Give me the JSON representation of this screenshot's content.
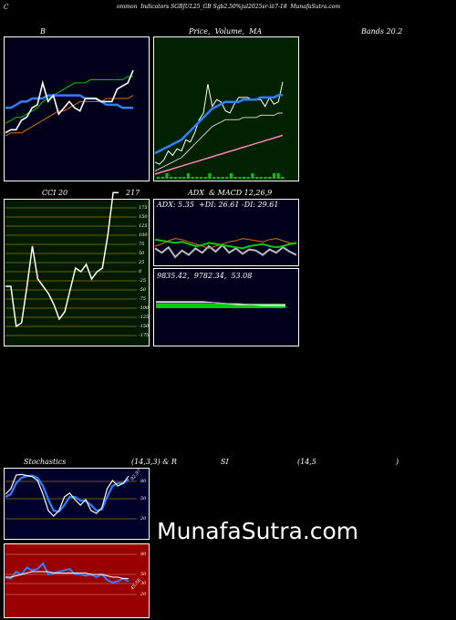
{
  "header": {
    "c_letter": "C",
    "line": "ommon  Indicators SGBJUL25_GB Sgb2.50%jul2025sr-iii7-18  MunafaSutra.com"
  },
  "labels": {
    "b": "B",
    "price_volume_ma": "Price,  Volume,  MA",
    "bands": "Bands 20.2",
    "cci": "CCI 20",
    "cci_value": "217",
    "adx_macd": "ADX  & MACD 12,26,9",
    "adx_line": "ADX: 5.35  +DI: 26.61 -DI: 29.61",
    "macd_line": "9835.42,  9782.34,  53.08",
    "stoch": "Stochastics",
    "stoch_params": "(14,3,3) & R",
    "si": "SI",
    "rsi_params": "(14,5",
    "paren": ")",
    "stoch_value": "92.97",
    "rsi_value": "45.56"
  },
  "watermark": "MunafaSutra.com",
  "cci_ticks": [
    "175",
    "150",
    "125",
    "100",
    "75",
    "50",
    "25",
    "0",
    "-25",
    "-50",
    "-75",
    "-100",
    "-125",
    "-150",
    "-175"
  ],
  "stoch_ticks": [
    "80",
    "50",
    "20"
  ],
  "rsi_ticks": [
    "80",
    "50",
    "30",
    "20"
  ],
  "colors": {
    "bollinger_bg": "#00001a",
    "price_bg": "#002200",
    "cci_bg": "#001a00",
    "adx_bg": "#00001a",
    "stoch_bg": "#00002a",
    "rsi_bg": "#990000",
    "blue": "#2f80ff",
    "orange": "#e07000",
    "green": "#00cc00",
    "pink": "#ff80c0"
  },
  "chart_data": [
    {
      "type": "line",
      "panel": "bollinger",
      "series": [
        {
          "values": [
            2,
            3,
            3,
            6,
            7,
            10,
            11,
            18,
            12,
            14,
            8,
            10,
            12,
            10,
            9,
            13,
            13,
            13,
            12,
            12,
            12,
            16,
            17,
            18,
            22
          ]
        },
        {
          "values": [
            13,
            14,
            15,
            15,
            16,
            17,
            18,
            20,
            21,
            22,
            23,
            24,
            25,
            26,
            26,
            26,
            27,
            27,
            27,
            27,
            27,
            27,
            27,
            28,
            28
          ]
        },
        {
          "values": [
            9,
            10,
            10,
            10,
            11,
            12,
            13,
            14,
            15,
            16,
            17,
            17,
            18,
            19,
            20,
            20,
            20,
            20,
            20,
            21,
            21,
            21,
            21,
            21,
            22
          ]
        },
        {
          "values": [
            30,
            30,
            31,
            32,
            32,
            33,
            33,
            33,
            34,
            34,
            34,
            34,
            34,
            34,
            34,
            33,
            33,
            33,
            32,
            31,
            31,
            31,
            30,
            30,
            30
          ]
        }
      ]
    },
    {
      "type": "line",
      "panel": "price",
      "series": [
        {
          "values": [
            5,
            4,
            6,
            10,
            8,
            11,
            10,
            15,
            14,
            18,
            24,
            27,
            40,
            30,
            33,
            32,
            28,
            27,
            31,
            34,
            34,
            34,
            33,
            33,
            33,
            30,
            34,
            31,
            32,
            41
          ]
        },
        {
          "values": [
            5,
            6,
            7,
            8,
            9,
            10,
            11,
            13,
            15,
            17,
            19,
            21,
            23,
            25,
            26,
            27,
            28,
            28,
            28,
            28,
            29,
            29,
            29,
            29,
            30,
            30,
            30,
            30,
            31,
            31
          ]
        },
        {
          "values": [
            1,
            2,
            3,
            4,
            5,
            6,
            7,
            8,
            9,
            10,
            11,
            12,
            13,
            14,
            15,
            16,
            17,
            18,
            19,
            20,
            21,
            22,
            23,
            24,
            25,
            26,
            27,
            28,
            29,
            30
          ]
        }
      ]
    },
    {
      "type": "line",
      "panel": "cci",
      "series": [
        {
          "values": [
            -40,
            -40,
            -150,
            -140,
            -40,
            70,
            -20,
            -40,
            -60,
            -90,
            -130,
            -110,
            -50,
            10,
            0,
            20,
            -20,
            0,
            10,
            100,
            217,
            217
          ]
        }
      ]
    },
    {
      "type": "line",
      "panel": "adx",
      "series": [
        {
          "values": [
            18,
            14,
            19,
            10,
            16,
            12,
            18,
            14,
            20,
            15,
            21,
            14,
            18,
            13,
            17,
            16,
            12,
            17,
            14,
            19,
            15,
            12
          ]
        },
        {
          "values": [
            20,
            22,
            25,
            27,
            26,
            24,
            22,
            20,
            18,
            20,
            22,
            24,
            25,
            27,
            26,
            25,
            24,
            26,
            27,
            25,
            23,
            22
          ]
        },
        {
          "values": [
            26,
            25,
            24,
            23,
            24,
            22,
            20,
            21,
            23,
            22,
            21,
            20,
            19,
            18,
            20,
            21,
            22,
            20,
            19,
            20,
            22,
            23
          ]
        }
      ]
    },
    {
      "type": "line",
      "panel": "stochastics",
      "series": [
        {
          "values": [
            60,
            70,
            95,
            96,
            94,
            92,
            85,
            60,
            30,
            20,
            30,
            55,
            62,
            50,
            40,
            50,
            30,
            25,
            35,
            70,
            85,
            75,
            80,
            93
          ]
        },
        {
          "values": [
            55,
            60,
            80,
            90,
            93,
            94,
            90,
            75,
            50,
            30,
            28,
            40,
            55,
            55,
            48,
            48,
            40,
            30,
            32,
            55,
            75,
            80,
            80,
            87
          ]
        }
      ]
    },
    {
      "type": "line",
      "panel": "rsi",
      "series": [
        {
          "values": [
            48,
            47,
            52,
            50,
            55,
            53,
            54,
            58,
            50,
            51,
            52,
            53,
            54,
            50,
            50,
            49,
            50,
            48,
            50,
            46,
            44,
            45,
            47,
            45
          ]
        },
        {
          "values": [
            48,
            48,
            49,
            50,
            51,
            52,
            52,
            52,
            52,
            51,
            51,
            51,
            51,
            51,
            51,
            51,
            50,
            50,
            50,
            49,
            48,
            48,
            47,
            47
          ]
        }
      ]
    }
  ]
}
